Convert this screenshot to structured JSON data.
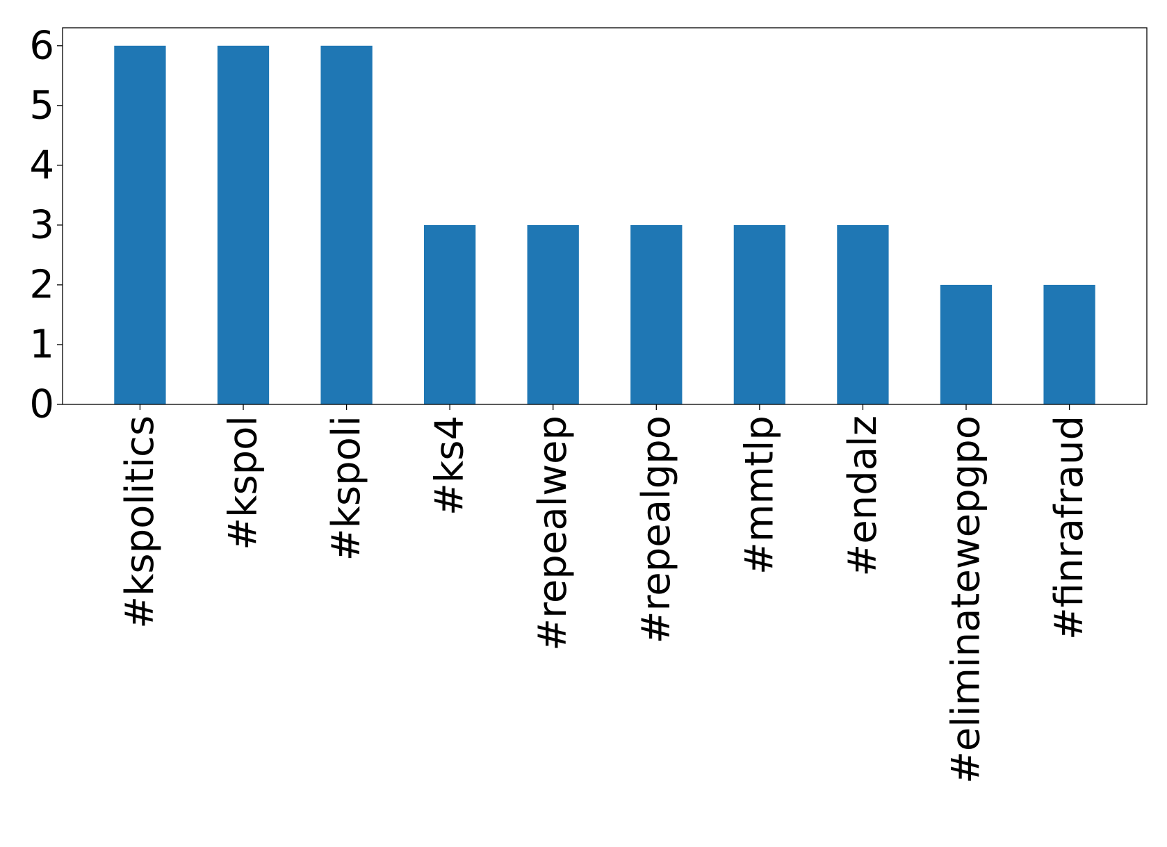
{
  "chart_data": {
    "type": "bar",
    "categories": [
      "#kspolitics",
      "#kspol",
      "#kspoli",
      "#ks4",
      "#repealwep",
      "#repealgpo",
      "#mmtlp",
      "#endalz",
      "#eliminatewepgpo",
      "#finrafraud"
    ],
    "values": [
      6,
      6,
      6,
      3,
      3,
      3,
      3,
      3,
      2,
      2
    ],
    "yticks": [
      "0",
      "1",
      "2",
      "3",
      "4",
      "5",
      "6"
    ],
    "ylim": [
      0,
      6.3
    ],
    "bar_color": "#1f77b4",
    "grid": false,
    "legend": "none"
  }
}
